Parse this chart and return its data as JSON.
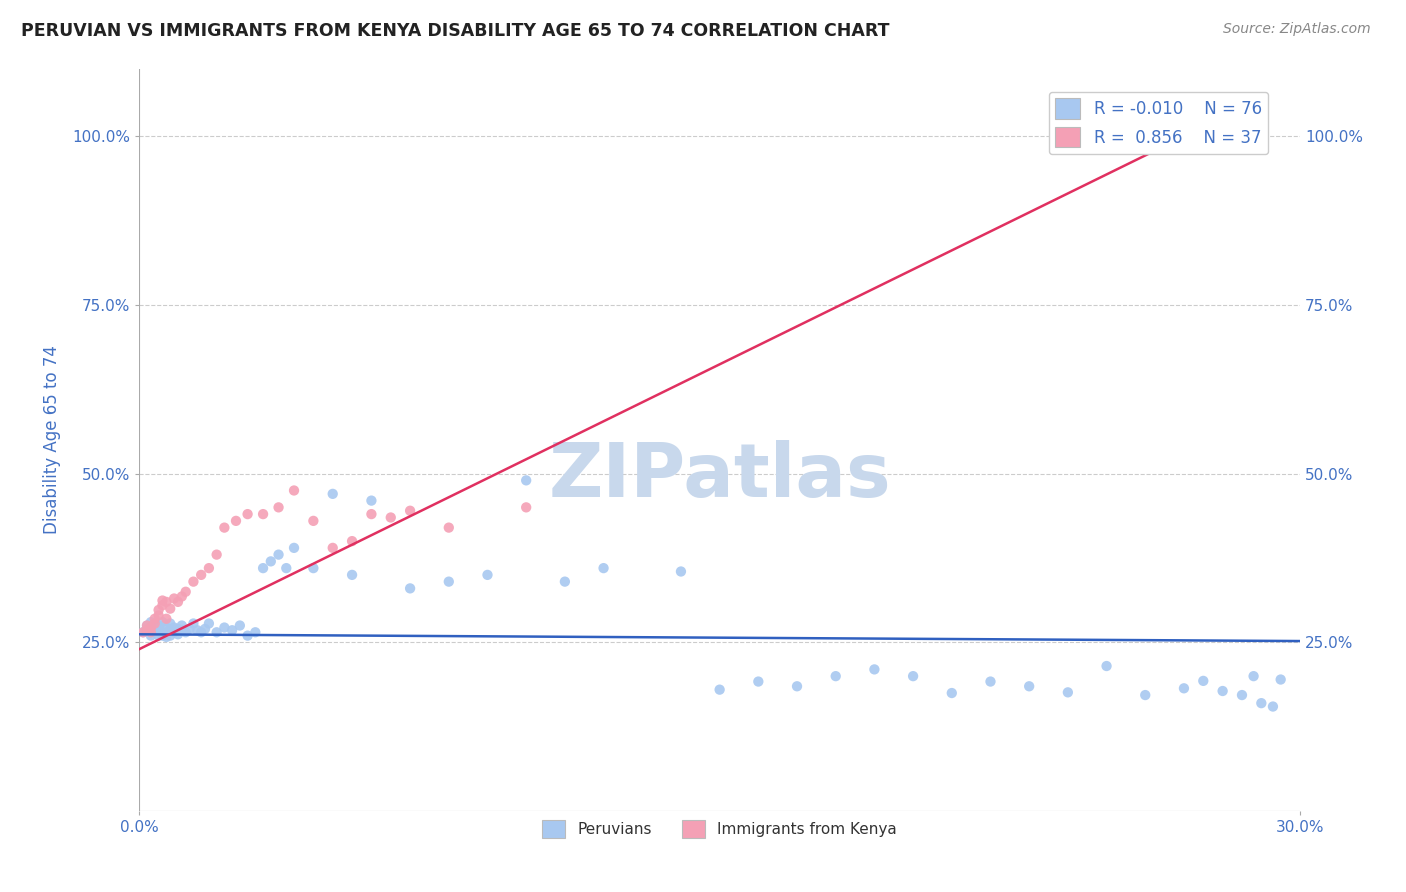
{
  "title": "PERUVIAN VS IMMIGRANTS FROM KENYA DISABILITY AGE 65 TO 74 CORRELATION CHART",
  "source_text": "Source: ZipAtlas.com",
  "ylabel": "Disability Age 65 to 74",
  "xlim": [
    0.0,
    0.3
  ],
  "ylim": [
    0.0,
    1.1
  ],
  "ytick_positions": [
    0.25,
    0.5,
    0.75,
    1.0
  ],
  "ytick_labels": [
    "25.0%",
    "50.0%",
    "75.0%",
    "100.0%"
  ],
  "blue_color": "#A8C8F0",
  "pink_color": "#F4A0B5",
  "blue_line_color": "#3060C0",
  "pink_line_color": "#E03060",
  "title_color": "#222222",
  "axis_label_color": "#4472C4",
  "legend_text_color": "#4472C4",
  "watermark_color": "#C8D8EC",
  "R_blue": -0.01,
  "N_blue": 76,
  "R_pink": 0.856,
  "N_pink": 37,
  "blue_scatter_x": [
    0.001,
    0.002,
    0.002,
    0.003,
    0.003,
    0.004,
    0.004,
    0.004,
    0.005,
    0.005,
    0.005,
    0.005,
    0.006,
    0.006,
    0.006,
    0.007,
    0.007,
    0.007,
    0.008,
    0.008,
    0.008,
    0.009,
    0.009,
    0.01,
    0.01,
    0.011,
    0.011,
    0.012,
    0.013,
    0.014,
    0.015,
    0.016,
    0.017,
    0.018,
    0.02,
    0.022,
    0.024,
    0.026,
    0.028,
    0.03,
    0.032,
    0.034,
    0.036,
    0.038,
    0.04,
    0.045,
    0.05,
    0.055,
    0.06,
    0.07,
    0.08,
    0.09,
    0.1,
    0.11,
    0.12,
    0.14,
    0.15,
    0.16,
    0.17,
    0.18,
    0.19,
    0.2,
    0.21,
    0.22,
    0.23,
    0.24,
    0.25,
    0.26,
    0.27,
    0.275,
    0.28,
    0.285,
    0.288,
    0.29,
    0.293,
    0.295
  ],
  "blue_scatter_y": [
    0.265,
    0.27,
    0.275,
    0.26,
    0.28,
    0.265,
    0.27,
    0.275,
    0.26,
    0.265,
    0.27,
    0.275,
    0.26,
    0.265,
    0.28,
    0.258,
    0.265,
    0.272,
    0.26,
    0.268,
    0.278,
    0.265,
    0.272,
    0.262,
    0.27,
    0.268,
    0.275,
    0.265,
    0.27,
    0.278,
    0.268,
    0.265,
    0.27,
    0.278,
    0.265,
    0.272,
    0.268,
    0.275,
    0.26,
    0.265,
    0.36,
    0.37,
    0.38,
    0.36,
    0.39,
    0.36,
    0.47,
    0.35,
    0.46,
    0.33,
    0.34,
    0.35,
    0.49,
    0.34,
    0.36,
    0.355,
    0.18,
    0.192,
    0.185,
    0.2,
    0.21,
    0.2,
    0.175,
    0.192,
    0.185,
    0.176,
    0.215,
    0.172,
    0.182,
    0.193,
    0.178,
    0.172,
    0.2,
    0.16,
    0.155,
    0.195
  ],
  "pink_scatter_x": [
    0.001,
    0.002,
    0.002,
    0.003,
    0.003,
    0.004,
    0.004,
    0.005,
    0.005,
    0.006,
    0.006,
    0.007,
    0.007,
    0.008,
    0.009,
    0.01,
    0.011,
    0.012,
    0.014,
    0.016,
    0.018,
    0.02,
    0.022,
    0.025,
    0.028,
    0.032,
    0.036,
    0.04,
    0.045,
    0.05,
    0.055,
    0.06,
    0.065,
    0.07,
    0.08,
    0.1,
    0.27
  ],
  "pink_scatter_y": [
    0.265,
    0.268,
    0.275,
    0.265,
    0.272,
    0.278,
    0.285,
    0.29,
    0.298,
    0.305,
    0.312,
    0.285,
    0.31,
    0.3,
    0.315,
    0.31,
    0.318,
    0.325,
    0.34,
    0.35,
    0.36,
    0.38,
    0.42,
    0.43,
    0.44,
    0.44,
    0.45,
    0.475,
    0.43,
    0.39,
    0.4,
    0.44,
    0.435,
    0.445,
    0.42,
    0.45,
    1.0
  ],
  "blue_line_x0": 0.0,
  "blue_line_x1": 0.3,
  "blue_line_y0": 0.262,
  "blue_line_y1": 0.252,
  "pink_line_x0": 0.0,
  "pink_line_x1": 0.272,
  "pink_line_y0": 0.24,
  "pink_line_y1": 1.005
}
